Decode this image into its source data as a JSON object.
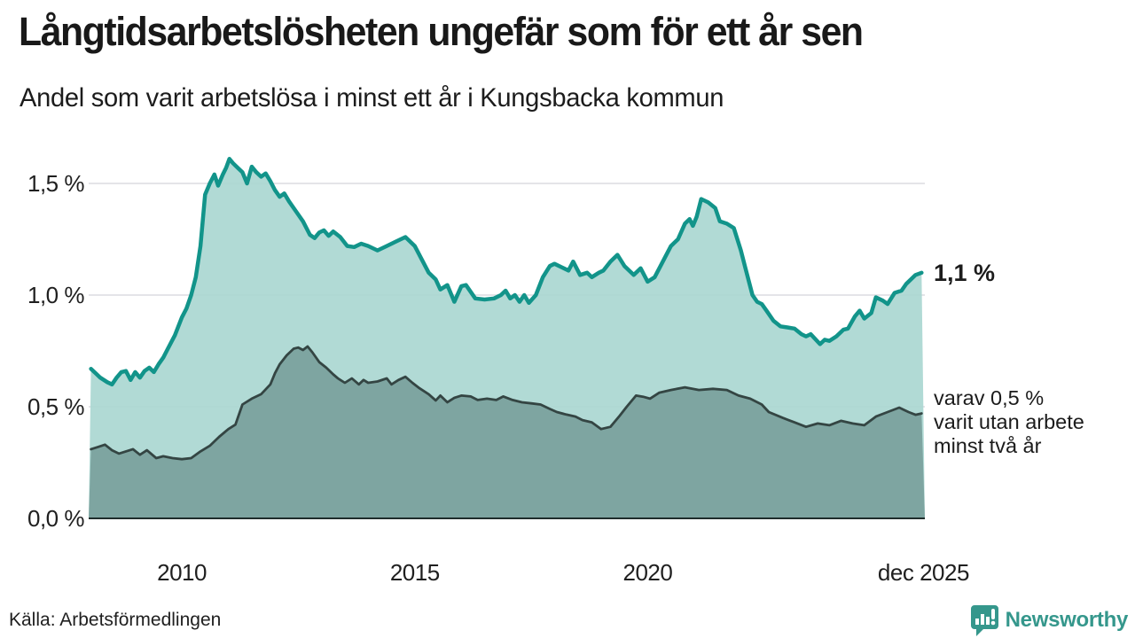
{
  "header": {
    "title": "Långtidsarbetslösheten ungefär som för ett år sen",
    "subtitle": "Andel som varit arbetslösa i minst ett år i Kungsbacka kommun"
  },
  "annotations": {
    "latest_value": "1,1 %",
    "secondary": "varav 0,5 %\nvarit utan arbete\nminst två år"
  },
  "footer": {
    "source": "Källa: Arbetsförmedlingen",
    "brand": "Newsworthy"
  },
  "colors": {
    "line_primary": "#12948a",
    "fill_primary": "#a9d6d0",
    "line_secondary": "#344543",
    "fill_secondary": "#7ba29e",
    "gridline": "#e4e4e8",
    "axisline": "#1f2d2c",
    "brand_teal": "#35978c",
    "text": "#1c1c1c"
  },
  "chart_data": {
    "type": "area",
    "title": "Långtidsarbetslösheten ungefär som för ett år sen",
    "subtitle": "Andel som varit arbetslösa i minst ett år i Kungsbacka kommun",
    "unit": "%",
    "grid": true,
    "x_range": [
      2008.0,
      2025.95
    ],
    "ylim": [
      0,
      1.65
    ],
    "y_ticks": [
      {
        "value": 0.0,
        "label": "0,0 %"
      },
      {
        "value": 0.5,
        "label": "0,5 %"
      },
      {
        "value": 1.0,
        "label": "1,0 %"
      },
      {
        "value": 1.5,
        "label": "1,5 %"
      }
    ],
    "x_ticks": [
      {
        "x": 2010,
        "label": "2010"
      },
      {
        "x": 2015,
        "label": "2015"
      },
      {
        "x": 2020,
        "label": "2020"
      },
      {
        "x": 2025.92,
        "label": "dec 2025"
      }
    ],
    "series": [
      {
        "name": "arbetslösa minst ett år",
        "end_label": "1,1 %",
        "points": [
          [
            2008.05,
            0.67
          ],
          [
            2008.15,
            0.65
          ],
          [
            2008.25,
            0.63
          ],
          [
            2008.4,
            0.61
          ],
          [
            2008.5,
            0.6
          ],
          [
            2008.6,
            0.63
          ],
          [
            2008.7,
            0.655
          ],
          [
            2008.8,
            0.66
          ],
          [
            2008.9,
            0.62
          ],
          [
            2009.0,
            0.655
          ],
          [
            2009.1,
            0.63
          ],
          [
            2009.2,
            0.66
          ],
          [
            2009.3,
            0.675
          ],
          [
            2009.4,
            0.655
          ],
          [
            2009.5,
            0.69
          ],
          [
            2009.6,
            0.72
          ],
          [
            2009.7,
            0.76
          ],
          [
            2009.85,
            0.82
          ],
          [
            2010.0,
            0.9
          ],
          [
            2010.1,
            0.94
          ],
          [
            2010.2,
            1.0
          ],
          [
            2010.3,
            1.08
          ],
          [
            2010.4,
            1.22
          ],
          [
            2010.5,
            1.45
          ],
          [
            2010.6,
            1.5
          ],
          [
            2010.7,
            1.54
          ],
          [
            2010.78,
            1.49
          ],
          [
            2010.88,
            1.54
          ],
          [
            2010.95,
            1.57
          ],
          [
            2011.02,
            1.61
          ],
          [
            2011.1,
            1.59
          ],
          [
            2011.2,
            1.57
          ],
          [
            2011.3,
            1.55
          ],
          [
            2011.4,
            1.5
          ],
          [
            2011.5,
            1.575
          ],
          [
            2011.6,
            1.55
          ],
          [
            2011.7,
            1.53
          ],
          [
            2011.8,
            1.545
          ],
          [
            2011.9,
            1.51
          ],
          [
            2012.0,
            1.47
          ],
          [
            2012.1,
            1.44
          ],
          [
            2012.2,
            1.455
          ],
          [
            2012.3,
            1.42
          ],
          [
            2012.45,
            1.375
          ],
          [
            2012.6,
            1.33
          ],
          [
            2012.75,
            1.27
          ],
          [
            2012.85,
            1.255
          ],
          [
            2012.95,
            1.28
          ],
          [
            2013.05,
            1.29
          ],
          [
            2013.15,
            1.265
          ],
          [
            2013.25,
            1.285
          ],
          [
            2013.4,
            1.26
          ],
          [
            2013.55,
            1.22
          ],
          [
            2013.7,
            1.215
          ],
          [
            2013.85,
            1.23
          ],
          [
            2014.0,
            1.22
          ],
          [
            2014.2,
            1.2
          ],
          [
            2014.4,
            1.22
          ],
          [
            2014.6,
            1.24
          ],
          [
            2014.8,
            1.26
          ],
          [
            2015.0,
            1.22
          ],
          [
            2015.15,
            1.16
          ],
          [
            2015.3,
            1.1
          ],
          [
            2015.45,
            1.07
          ],
          [
            2015.55,
            1.025
          ],
          [
            2015.7,
            1.045
          ],
          [
            2015.85,
            0.97
          ],
          [
            2016.0,
            1.04
          ],
          [
            2016.1,
            1.045
          ],
          [
            2016.3,
            0.985
          ],
          [
            2016.5,
            0.98
          ],
          [
            2016.7,
            0.985
          ],
          [
            2016.85,
            1.0
          ],
          [
            2016.95,
            1.02
          ],
          [
            2017.05,
            0.985
          ],
          [
            2017.15,
            1.0
          ],
          [
            2017.25,
            0.97
          ],
          [
            2017.35,
            1.0
          ],
          [
            2017.45,
            0.965
          ],
          [
            2017.6,
            1.0
          ],
          [
            2017.75,
            1.08
          ],
          [
            2017.9,
            1.13
          ],
          [
            2018.0,
            1.14
          ],
          [
            2018.15,
            1.125
          ],
          [
            2018.3,
            1.11
          ],
          [
            2018.4,
            1.15
          ],
          [
            2018.55,
            1.09
          ],
          [
            2018.7,
            1.1
          ],
          [
            2018.8,
            1.08
          ],
          [
            2018.95,
            1.1
          ],
          [
            2019.05,
            1.11
          ],
          [
            2019.2,
            1.15
          ],
          [
            2019.35,
            1.18
          ],
          [
            2019.5,
            1.13
          ],
          [
            2019.7,
            1.09
          ],
          [
            2019.85,
            1.12
          ],
          [
            2020.0,
            1.06
          ],
          [
            2020.15,
            1.08
          ],
          [
            2020.35,
            1.16
          ],
          [
            2020.5,
            1.22
          ],
          [
            2020.65,
            1.25
          ],
          [
            2020.8,
            1.32
          ],
          [
            2020.9,
            1.34
          ],
          [
            2020.97,
            1.31
          ],
          [
            2021.05,
            1.35
          ],
          [
            2021.15,
            1.43
          ],
          [
            2021.3,
            1.415
          ],
          [
            2021.45,
            1.39
          ],
          [
            2021.55,
            1.33
          ],
          [
            2021.7,
            1.32
          ],
          [
            2021.85,
            1.3
          ],
          [
            2022.0,
            1.2
          ],
          [
            2022.1,
            1.12
          ],
          [
            2022.25,
            1.0
          ],
          [
            2022.35,
            0.97
          ],
          [
            2022.45,
            0.96
          ],
          [
            2022.55,
            0.93
          ],
          [
            2022.7,
            0.885
          ],
          [
            2022.85,
            0.86
          ],
          [
            2023.0,
            0.855
          ],
          [
            2023.15,
            0.85
          ],
          [
            2023.3,
            0.825
          ],
          [
            2023.4,
            0.815
          ],
          [
            2023.5,
            0.825
          ],
          [
            2023.7,
            0.78
          ],
          [
            2023.8,
            0.8
          ],
          [
            2023.9,
            0.795
          ],
          [
            2024.05,
            0.815
          ],
          [
            2024.2,
            0.845
          ],
          [
            2024.3,
            0.85
          ],
          [
            2024.45,
            0.905
          ],
          [
            2024.55,
            0.93
          ],
          [
            2024.65,
            0.895
          ],
          [
            2024.8,
            0.92
          ],
          [
            2024.9,
            0.99
          ],
          [
            2025.05,
            0.975
          ],
          [
            2025.15,
            0.96
          ],
          [
            2025.3,
            1.01
          ],
          [
            2025.45,
            1.02
          ],
          [
            2025.55,
            1.05
          ],
          [
            2025.65,
            1.07
          ],
          [
            2025.75,
            1.09
          ],
          [
            2025.88,
            1.1
          ]
        ]
      },
      {
        "name": "varit utan arbete minst två år",
        "end_label": "0,5 %",
        "points": [
          [
            2008.05,
            0.31
          ],
          [
            2008.2,
            0.32
          ],
          [
            2008.35,
            0.33
          ],
          [
            2008.5,
            0.305
          ],
          [
            2008.65,
            0.29
          ],
          [
            2008.8,
            0.3
          ],
          [
            2008.95,
            0.31
          ],
          [
            2009.1,
            0.285
          ],
          [
            2009.25,
            0.305
          ],
          [
            2009.45,
            0.27
          ],
          [
            2009.6,
            0.278
          ],
          [
            2009.8,
            0.27
          ],
          [
            2010.0,
            0.265
          ],
          [
            2010.2,
            0.27
          ],
          [
            2010.4,
            0.3
          ],
          [
            2010.6,
            0.325
          ],
          [
            2010.8,
            0.365
          ],
          [
            2011.0,
            0.4
          ],
          [
            2011.15,
            0.42
          ],
          [
            2011.3,
            0.51
          ],
          [
            2011.5,
            0.536
          ],
          [
            2011.7,
            0.556
          ],
          [
            2011.9,
            0.6
          ],
          [
            2012.0,
            0.65
          ],
          [
            2012.1,
            0.69
          ],
          [
            2012.25,
            0.73
          ],
          [
            2012.4,
            0.76
          ],
          [
            2012.5,
            0.765
          ],
          [
            2012.6,
            0.754
          ],
          [
            2012.7,
            0.77
          ],
          [
            2012.8,
            0.744
          ],
          [
            2012.95,
            0.7
          ],
          [
            2013.1,
            0.675
          ],
          [
            2013.25,
            0.645
          ],
          [
            2013.35,
            0.627
          ],
          [
            2013.5,
            0.607
          ],
          [
            2013.65,
            0.627
          ],
          [
            2013.8,
            0.6
          ],
          [
            2013.9,
            0.62
          ],
          [
            2014.0,
            0.607
          ],
          [
            2014.2,
            0.613
          ],
          [
            2014.4,
            0.627
          ],
          [
            2014.5,
            0.6
          ],
          [
            2014.65,
            0.62
          ],
          [
            2014.8,
            0.634
          ],
          [
            2014.95,
            0.607
          ],
          [
            2015.1,
            0.583
          ],
          [
            2015.3,
            0.556
          ],
          [
            2015.45,
            0.528
          ],
          [
            2015.55,
            0.55
          ],
          [
            2015.7,
            0.52
          ],
          [
            2015.85,
            0.54
          ],
          [
            2016.0,
            0.55
          ],
          [
            2016.2,
            0.546
          ],
          [
            2016.35,
            0.53
          ],
          [
            2016.55,
            0.536
          ],
          [
            2016.75,
            0.53
          ],
          [
            2016.9,
            0.546
          ],
          [
            2017.1,
            0.53
          ],
          [
            2017.3,
            0.52
          ],
          [
            2017.5,
            0.515
          ],
          [
            2017.7,
            0.51
          ],
          [
            2017.9,
            0.49
          ],
          [
            2018.05,
            0.476
          ],
          [
            2018.25,
            0.465
          ],
          [
            2018.45,
            0.456
          ],
          [
            2018.6,
            0.44
          ],
          [
            2018.8,
            0.43
          ],
          [
            2019.0,
            0.4
          ],
          [
            2019.2,
            0.41
          ],
          [
            2019.4,
            0.46
          ],
          [
            2019.55,
            0.5
          ],
          [
            2019.75,
            0.55
          ],
          [
            2019.9,
            0.545
          ],
          [
            2020.05,
            0.536
          ],
          [
            2020.25,
            0.563
          ],
          [
            2020.5,
            0.575
          ],
          [
            2020.8,
            0.587
          ],
          [
            2021.1,
            0.575
          ],
          [
            2021.4,
            0.58
          ],
          [
            2021.7,
            0.575
          ],
          [
            2021.95,
            0.55
          ],
          [
            2022.2,
            0.536
          ],
          [
            2022.45,
            0.51
          ],
          [
            2022.6,
            0.476
          ],
          [
            2022.9,
            0.45
          ],
          [
            2023.15,
            0.43
          ],
          [
            2023.4,
            0.41
          ],
          [
            2023.65,
            0.425
          ],
          [
            2023.9,
            0.417
          ],
          [
            2024.15,
            0.437
          ],
          [
            2024.4,
            0.425
          ],
          [
            2024.65,
            0.417
          ],
          [
            2024.9,
            0.456
          ],
          [
            2025.15,
            0.476
          ],
          [
            2025.4,
            0.496
          ],
          [
            2025.6,
            0.476
          ],
          [
            2025.75,
            0.464
          ],
          [
            2025.88,
            0.47
          ]
        ]
      }
    ]
  }
}
